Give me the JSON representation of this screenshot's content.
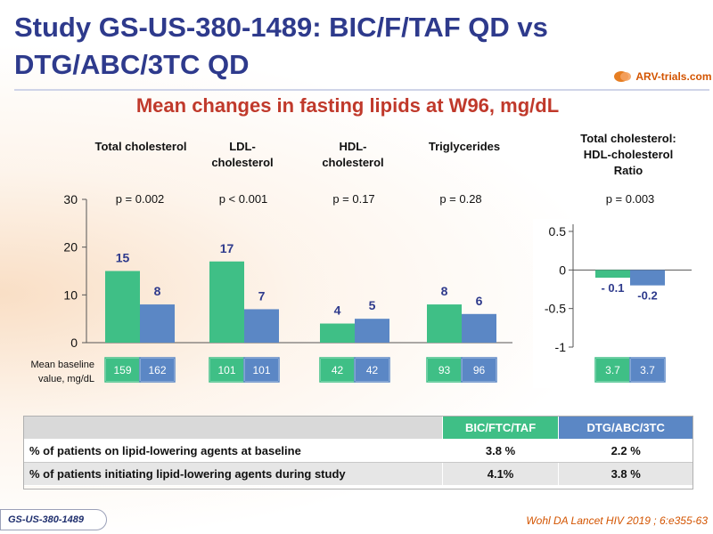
{
  "header": {
    "title_line1": "Study GS-US-380-1489: BIC/F/TAF QD vs",
    "title_line2": "DTG/ABC/3TC QD",
    "logo_text": "ARV-trials.com"
  },
  "subtitle": "Mean changes in fasting lipids at W96, mg/dL",
  "columns": [
    {
      "label_line1": "Total cholesterol",
      "label_line2": "",
      "pvalue": "p = 0.002"
    },
    {
      "label_line1": "LDL-",
      "label_line2": "cholesterol",
      "pvalue": "p < 0.001"
    },
    {
      "label_line1": "HDL-",
      "label_line2": "cholesterol",
      "pvalue": "p = 0.17"
    },
    {
      "label_line1": "Triglycerides",
      "label_line2": "",
      "pvalue": "p = 0.28"
    }
  ],
  "ratio_column": {
    "label_line1": "Total cholesterol:",
    "label_line2": "HDL-cholesterol",
    "label_line3": "Ratio",
    "pvalue": "p = 0.003"
  },
  "baseline_label": "Mean baseline value, mg/dL",
  "colors": {
    "green": "#3fbf86",
    "blue": "#5b87c5",
    "value_label": "#2e3a8c",
    "title": "#2e3a8c",
    "subtitle": "#c0392b"
  },
  "chart_data": [
    {
      "type": "bar",
      "categories": [
        "Total cholesterol",
        "LDL-cholesterol",
        "HDL-cholesterol",
        "Triglycerides"
      ],
      "series": [
        {
          "name": "BIC/FTC/TAF",
          "values": [
            15,
            17,
            4,
            8
          ],
          "labels": [
            "15",
            "17",
            "4",
            "8"
          ],
          "baseline": [
            "159",
            "101",
            "42",
            "93"
          ]
        },
        {
          "name": "DTG/ABC/3TC",
          "values": [
            8,
            7,
            5,
            6
          ],
          "labels": [
            "8",
            "7",
            "5",
            "6"
          ],
          "baseline": [
            "162",
            "101",
            "42",
            "96"
          ]
        }
      ],
      "yticks": [
        "30",
        "20",
        "10",
        "0"
      ],
      "ylim": [
        0,
        30
      ]
    },
    {
      "type": "bar",
      "categories": [
        "Total cholesterol: HDL-cholesterol Ratio"
      ],
      "series": [
        {
          "name": "BIC/FTC/TAF",
          "values": [
            -0.1
          ],
          "labels": [
            "- 0.1"
          ],
          "baseline": [
            "3.7"
          ]
        },
        {
          "name": "DTG/ABC/3TC",
          "values": [
            -0.2
          ],
          "labels": [
            "-0.2"
          ],
          "baseline": [
            "3.7"
          ]
        }
      ],
      "yticks": [
        "0.5",
        "0",
        "-0.5",
        "-1"
      ],
      "ylim": [
        -1,
        0.5
      ]
    }
  ],
  "table": {
    "headers": [
      "",
      "BIC/FTC/TAF",
      "DTG/ABC/3TC"
    ],
    "rows": [
      {
        "label": "% of patients on lipid-lowering agents at baseline",
        "a": "3.8 %",
        "b": "2.2 %"
      },
      {
        "label": "% of patients initiating lipid-lowering agents during study",
        "a": "4.1%",
        "b": "3.8 %"
      }
    ]
  },
  "footer": {
    "study_tag": "GS-US-380-1489",
    "citation": "Wohl DA Lancet HIV 2019 ; 6:e355-63"
  }
}
